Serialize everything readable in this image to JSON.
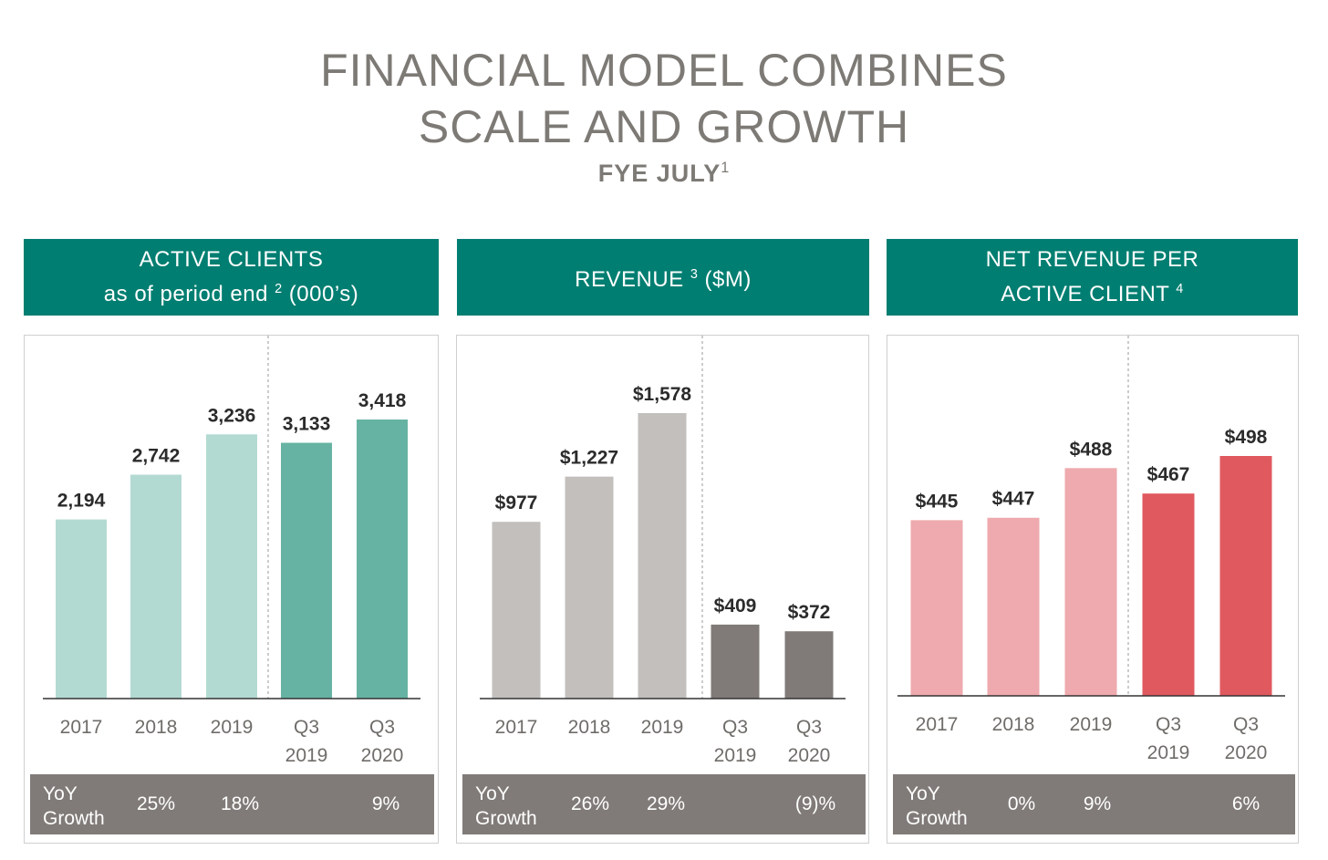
{
  "title": {
    "line1": "FINANCIAL MODEL COMBINES",
    "line2": "SCALE AND GROWTH",
    "subtitle": "FYE JULY",
    "subtitle_footnote": "1"
  },
  "panels": [
    {
      "header_line1": "ACTIVE CLIENTS",
      "header_line2": "as of period end",
      "header_footnote": "2",
      "header_suffix": " (000’s)",
      "yoy_label_line1": "YoY",
      "yoy_label_line2": "Growth",
      "yoy_values": [
        "25%",
        "18%",
        "",
        "9%"
      ]
    },
    {
      "header_line1": "REVENUE",
      "header_footnote": "3",
      "header_suffix": " ($M)",
      "yoy_label_line1": "YoY",
      "yoy_label_line2": "Growth",
      "yoy_values": [
        "26%",
        "29%",
        "",
        "(9)%"
      ]
    },
    {
      "header_line1": "NET REVENUE PER",
      "header_line2": "ACTIVE CLIENT",
      "header_footnote": "4",
      "yoy_label_line1": "YoY",
      "yoy_label_line2": "Growth",
      "yoy_values": [
        "0%",
        "9%",
        "",
        "6%"
      ]
    }
  ],
  "chart_data": [
    {
      "type": "bar",
      "title": "ACTIVE CLIENTS as of period end (000’s)",
      "categories": [
        [
          "2017"
        ],
        [
          "2018"
        ],
        [
          "2019"
        ],
        [
          "Q3",
          "2019"
        ],
        [
          "Q3",
          "2020"
        ]
      ],
      "values": [
        2194,
        2742,
        3236,
        3133,
        3418
      ],
      "labels": [
        "2,194",
        "2,742",
        "3,236",
        "3,133",
        "3,418"
      ],
      "colors": [
        "#b3dad2",
        "#b3dad2",
        "#b3dad2",
        "#66b3a3",
        "#66b3a3"
      ],
      "ylim": [
        0,
        3418
      ],
      "divider_after": 2
    },
    {
      "type": "bar",
      "title": "REVENUE ($M)",
      "categories": [
        [
          "2017"
        ],
        [
          "2018"
        ],
        [
          "2019"
        ],
        [
          "Q3",
          "2019"
        ],
        [
          "Q3",
          "2020"
        ]
      ],
      "values": [
        977,
        1227,
        1578,
        409,
        372
      ],
      "labels": [
        "$977",
        "$1,227",
        "$1,578",
        "$409",
        "$372"
      ],
      "colors": [
        "#c2bfbc",
        "#c2bfbc",
        "#c2bfbc",
        "#807b78",
        "#807b78"
      ],
      "ylim": [
        0,
        1578
      ],
      "divider_after": 2
    },
    {
      "type": "bar",
      "title": "NET REVENUE PER ACTIVE CLIENT",
      "categories": [
        [
          "2017"
        ],
        [
          "2018"
        ],
        [
          "2019"
        ],
        [
          "Q3",
          "2019"
        ],
        [
          "Q3",
          "2020"
        ]
      ],
      "values": [
        445,
        447,
        488,
        467,
        498
      ],
      "labels": [
        "$445",
        "$447",
        "$488",
        "$467",
        "$498"
      ],
      "colors": [
        "#eeaaae",
        "#eeaaae",
        "#eeaaae",
        "#e0595f",
        "#e0595f"
      ],
      "ylim": [
        300,
        498
      ],
      "divider_after": 2
    }
  ]
}
